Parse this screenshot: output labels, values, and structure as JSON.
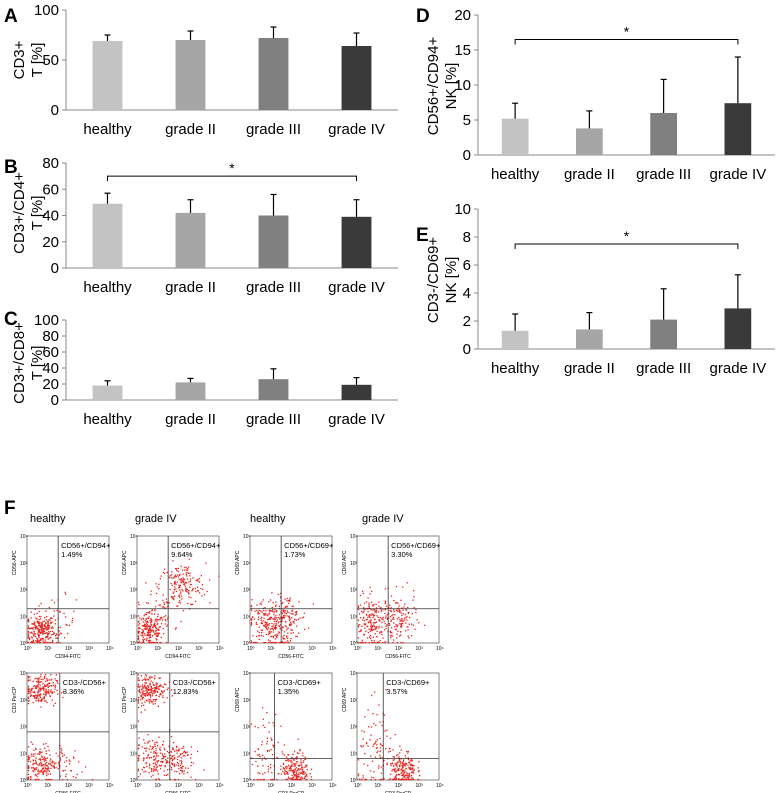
{
  "colors": {
    "healthy": "#c3c3c3",
    "grade_ii": "#a6a6a6",
    "grade_iii": "#808080",
    "grade_iv": "#3a3a3a",
    "dot": "#e8231e"
  },
  "chart_data": [
    {
      "panel": "A",
      "type": "bar",
      "ylabel_line1": "CD3+",
      "ylabel_line2": "T [%]",
      "categories": [
        "healthy",
        "grade II",
        "grade III",
        "grade IV"
      ],
      "values": [
        69,
        70,
        72,
        64
      ],
      "errors": [
        6,
        9,
        11,
        13
      ],
      "ylim": [
        0,
        100
      ],
      "yticks": [
        0,
        50,
        100
      ],
      "ytick_labels": [
        "0",
        "50",
        "100"
      ],
      "significance": null
    },
    {
      "panel": "B",
      "type": "bar",
      "ylabel_line1": "CD3+/CD4+",
      "ylabel_line2": "T [%]",
      "categories": [
        "healthy",
        "grade II",
        "grade III",
        "grade IV"
      ],
      "values": [
        49,
        42,
        40,
        39
      ],
      "errors": [
        8,
        10,
        16,
        13
      ],
      "ylim": [
        0,
        80
      ],
      "yticks": [
        0,
        20,
        40,
        60,
        80
      ],
      "ytick_labels": [
        "0",
        "20",
        "40",
        "60",
        "80"
      ],
      "significance": {
        "from": 0,
        "to": 3,
        "y": 70,
        "label": "*"
      }
    },
    {
      "panel": "C",
      "type": "bar",
      "ylabel_line1": "CD3+/CD8+",
      "ylabel_line2": "T [%]",
      "categories": [
        "healthy",
        "grade II",
        "grade III",
        "grade IV"
      ],
      "values": [
        18,
        22,
        26,
        19
      ],
      "errors": [
        6,
        5,
        13,
        9
      ],
      "ylim": [
        0,
        100
      ],
      "yticks": [
        0,
        20,
        40,
        60,
        80,
        100
      ],
      "ytick_labels": [
        "0",
        "20",
        "40",
        "60",
        "80",
        "100"
      ],
      "significance": null
    },
    {
      "panel": "D",
      "type": "bar",
      "ylabel_line1": "CD56+/CD94+",
      "ylabel_line2": "NK [%]",
      "categories": [
        "healthy",
        "grade II",
        "grade III",
        "grade IV"
      ],
      "values": [
        5.2,
        3.8,
        6.0,
        7.4
      ],
      "errors": [
        2.2,
        2.5,
        4.8,
        6.6
      ],
      "ylim": [
        0,
        20
      ],
      "yticks": [
        0,
        5,
        10,
        15,
        20
      ],
      "ytick_labels": [
        "0",
        "5",
        "10",
        "15",
        "20"
      ],
      "significance": {
        "from": 0,
        "to": 3,
        "y": 16.5,
        "label": "*"
      }
    },
    {
      "panel": "E",
      "type": "bar",
      "ylabel_line1": "CD3-/CD69+",
      "ylabel_line2": "NK [%]",
      "categories": [
        "healthy",
        "grade II",
        "grade III",
        "grade IV"
      ],
      "values": [
        1.3,
        1.4,
        2.1,
        2.9
      ],
      "errors": [
        1.2,
        1.2,
        2.2,
        2.4
      ],
      "ylim": [
        0,
        10
      ],
      "yticks": [
        0,
        2,
        4,
        6,
        8,
        10
      ],
      "ytick_labels": [
        "0",
        "2",
        "4",
        "6",
        "8",
        "10"
      ],
      "significance": {
        "from": 0,
        "to": 3,
        "y": 7.5,
        "label": "*"
      }
    }
  ],
  "flow": {
    "panel_letter": "F",
    "column_labels": [
      "healthy",
      "grade IV",
      "healthy",
      "grade IV"
    ],
    "axis_ticks": [
      "10⁰",
      "10¹",
      "10²",
      "10³",
      "10⁴"
    ],
    "plots": [
      {
        "gate": "CD56+/CD94+",
        "pct": "1.49%",
        "xlabel": "CD94-FITC",
        "ylabel": "CD56-APC"
      },
      {
        "gate": "CD56+/CD94+",
        "pct": "9.64%",
        "xlabel": "CD94-FITC",
        "ylabel": "CD56-APC"
      },
      {
        "gate": "CD56+/CD69+",
        "pct": "1.73%",
        "xlabel": "CD56-FITC",
        "ylabel": "CD69 APC"
      },
      {
        "gate": "CD56+/CD69+",
        "pct": "3.30%",
        "xlabel": "CD56-FITC",
        "ylabel": "CD69 APC"
      },
      {
        "gate": "CD3-/CD56+",
        "pct": "3.36%",
        "xlabel": "CD56-FITC",
        "ylabel": "CD3 PerCP"
      },
      {
        "gate": "CD3-/CD56+",
        "pct": "12.83%",
        "xlabel": "CD56-FITC",
        "ylabel": "CD3 PerCP"
      },
      {
        "gate": "CD3-/CD69+",
        "pct": "1.35%",
        "xlabel": "CD3 PerCP",
        "ylabel": "CD69 APC"
      },
      {
        "gate": "CD3-/CD69+",
        "pct": "3.57%",
        "xlabel": "CD3 PerCP",
        "ylabel": "CD69 APC"
      }
    ]
  }
}
